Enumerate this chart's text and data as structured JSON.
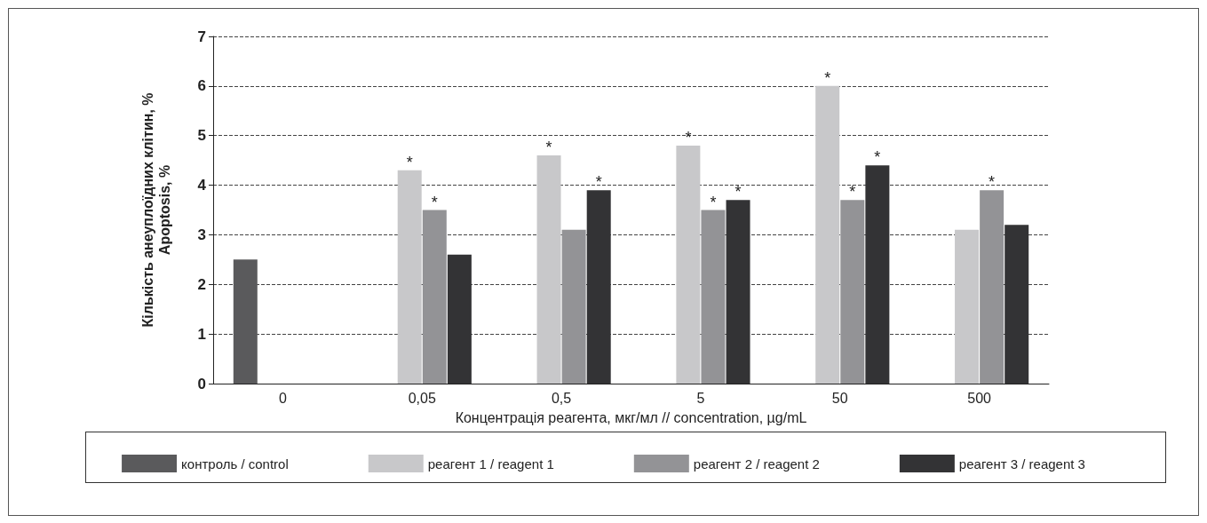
{
  "chart_data": {
    "type": "bar",
    "xlabel": "Концентрація реагента, мкг/мл // concentration, µg/mL",
    "ylabel": "Кількість анеуплоїдних клітин, %\nApoptosis, %",
    "categories": [
      "0",
      "0,05",
      "0,5",
      "5",
      "50",
      "500"
    ],
    "series": [
      {
        "name": "контроль / control",
        "color": "#5a5a5c",
        "values": [
          2.5,
          null,
          null,
          null,
          null,
          null
        ],
        "value_labels": [
          null,
          null,
          null,
          null,
          null,
          null
        ]
      },
      {
        "name": "реагент 1 / reagent 1",
        "color": "#c8c8ca",
        "values": [
          null,
          4.3,
          4.6,
          4.8,
          6.0,
          3.1
        ],
        "value_labels": [
          null,
          "*",
          "*",
          "*",
          "*",
          null
        ]
      },
      {
        "name": "реагент 2 / reagent 2",
        "color": "#939396",
        "values": [
          null,
          3.5,
          3.1,
          3.5,
          3.7,
          3.9
        ],
        "value_labels": [
          null,
          "*",
          null,
          "*",
          "*",
          "*"
        ]
      },
      {
        "name": "реагент 3 / reagent 3",
        "color": "#333335",
        "values": [
          null,
          2.6,
          3.9,
          3.7,
          4.4,
          3.2
        ],
        "value_labels": [
          null,
          null,
          "*",
          "*",
          "*",
          null
        ]
      }
    ],
    "ylim": [
      0,
      7
    ],
    "yticks": [
      0,
      1,
      2,
      3,
      4,
      5,
      6,
      7
    ],
    "grid": "y",
    "legend": "bottom"
  }
}
